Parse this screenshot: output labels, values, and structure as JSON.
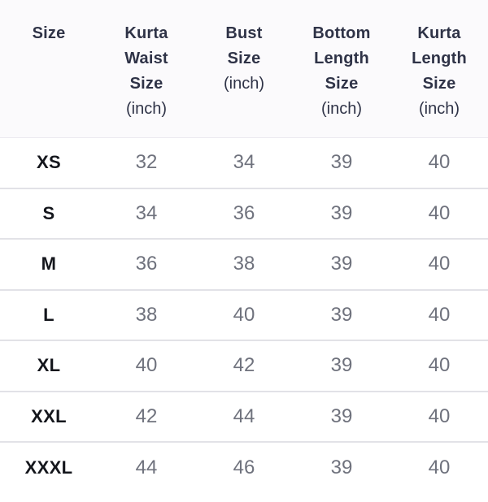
{
  "colors": {
    "header_bg": "#fbfafc",
    "header_text": "#2f3347",
    "size_label_text": "#14161c",
    "value_text": "#6f727d",
    "divider": "#e2e2e7",
    "page_bg": "#ffffff"
  },
  "table": {
    "columns": [
      {
        "title": "Size"
      },
      {
        "title": "Kurta\nWaist\nSize",
        "unit": "(inch)"
      },
      {
        "title": "Bust\nSize",
        "unit": "(inch)"
      },
      {
        "title": "Bottom\nLength\nSize",
        "unit": "(inch)"
      },
      {
        "title": "Kurta\nLength\nSize",
        "unit": "(inch)"
      }
    ],
    "rows": [
      {
        "size": "XS",
        "values": [
          "32",
          "34",
          "39",
          "40"
        ]
      },
      {
        "size": "S",
        "values": [
          "34",
          "36",
          "39",
          "40"
        ]
      },
      {
        "size": "M",
        "values": [
          "36",
          "38",
          "39",
          "40"
        ]
      },
      {
        "size": "L",
        "values": [
          "38",
          "40",
          "39",
          "40"
        ]
      },
      {
        "size": "XL",
        "values": [
          "40",
          "42",
          "39",
          "40"
        ]
      },
      {
        "size": "XXL",
        "values": [
          "42",
          "44",
          "39",
          "40"
        ]
      },
      {
        "size": "XXXL",
        "values": [
          "44",
          "46",
          "39",
          "40"
        ]
      }
    ]
  }
}
